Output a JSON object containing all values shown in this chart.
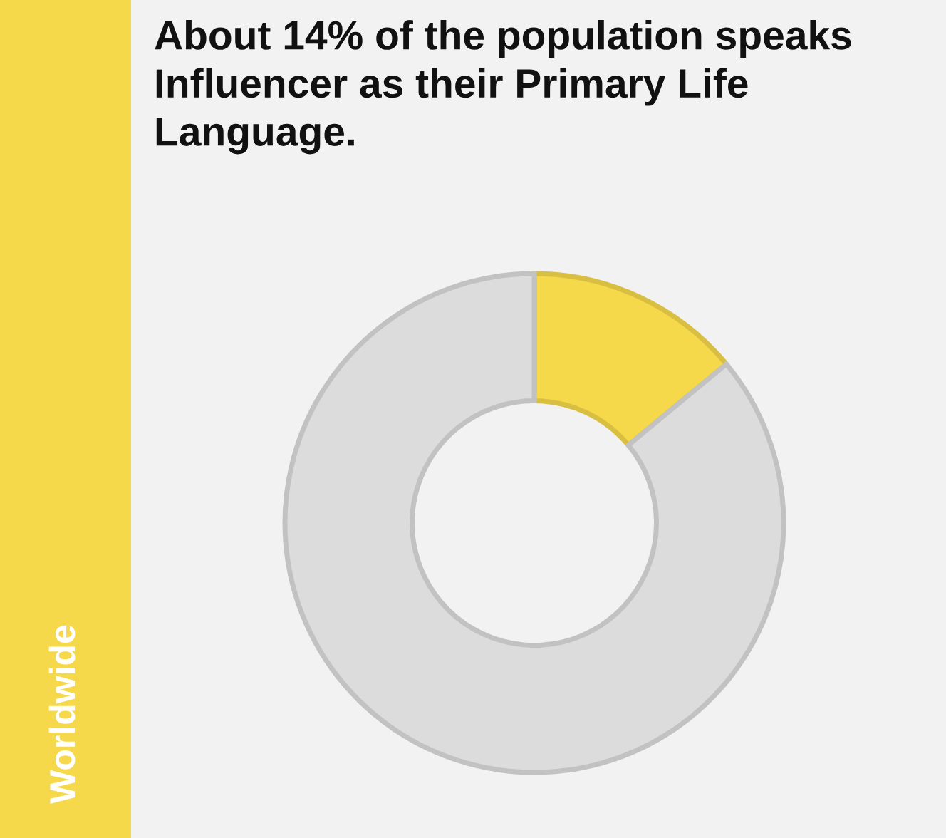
{
  "chart_data": {
    "type": "donut",
    "title": "About 14% of the population speaks\nInfluencer as their Primary Life\nLanguage.",
    "categories": [
      null,
      null
    ],
    "values": [
      14,
      86
    ],
    "colors": [
      "#f6d94b",
      "#dcdcdc"
    ],
    "annotations": [
      "Worldwide"
    ]
  }
}
